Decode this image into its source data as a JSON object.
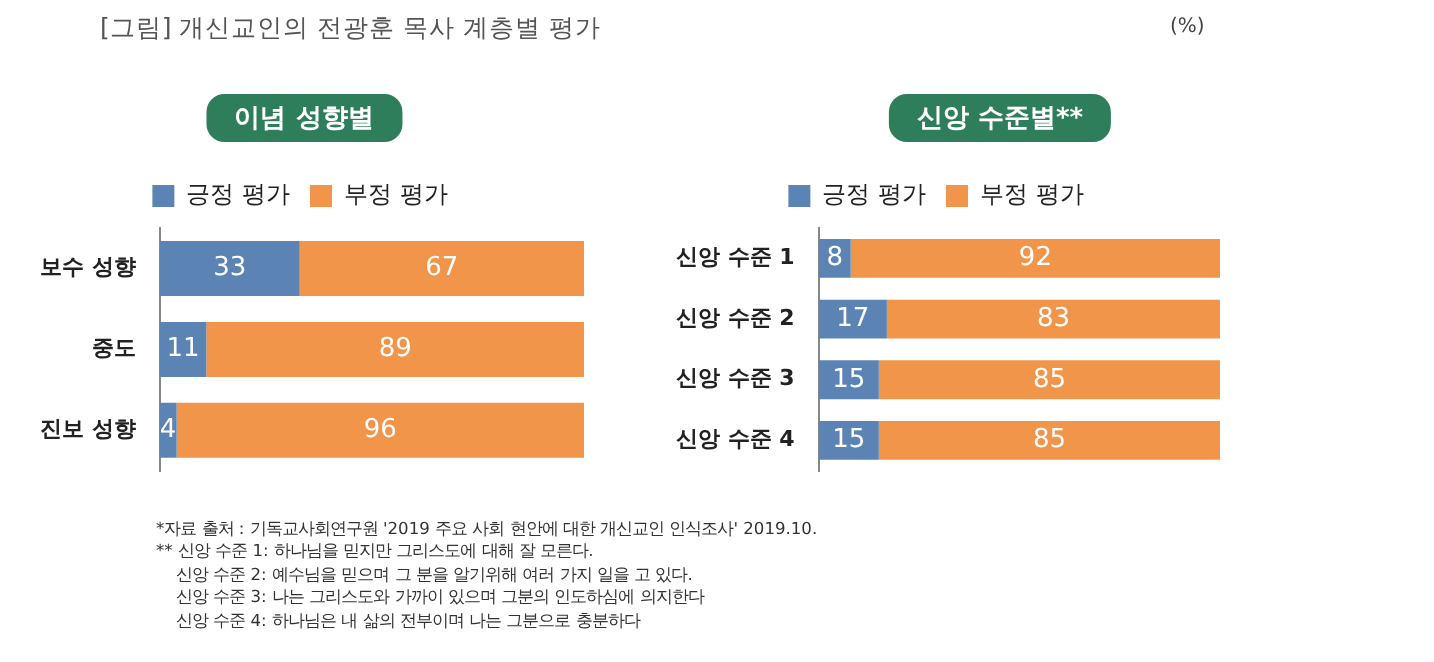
{
  "chart_data": [
    {
      "type": "bar",
      "orientation": "horizontal",
      "stacked": true,
      "title": "이념 성향별",
      "categories": [
        "보수 성향",
        "중도",
        "진보 성향"
      ],
      "series": [
        {
          "name": "긍정 평가",
          "color": "#5b84b5",
          "values": [
            33,
            11,
            4
          ]
        },
        {
          "name": "부정 평가",
          "color": "#f0954a",
          "values": [
            67,
            89,
            96
          ]
        }
      ],
      "xlim": [
        0,
        100
      ],
      "tick_labels": "y",
      "data_labels": true,
      "legend": "top",
      "annotations": [
        "[그림] 개신교인의 전광훈 목사 계층별 평가",
        "*자료 출처 : 기독교사회연구원 '2019 주요 사회 현안에 대한 개신교인 인식조사' 2019.10.",
        "** 신앙 수준 1: 하나님을 믿지만 그리스도에 대해 잘 모른다.",
        "신앙 수준 2: 예수님을 믿으며 그 분을 알기위해 여러 가지 일을 고 있다.",
        "신앙 수준 3: 나는 그리스도와 가까이 있으며 그분의 인도하심에 의지한다",
        "신앙 수준 4: 하나님은 내 삶의 전부이며 나는 그분으로 충분하다"
      ]
    },
    {
      "type": "bar",
      "orientation": "horizontal",
      "stacked": true,
      "title": "신앙 수준별**",
      "categories": [
        "신앙 수준 1",
        "신앙 수준 2",
        "신앙 수준 3",
        "신앙 수준 4"
      ],
      "series": [
        {
          "name": "긍정 평가",
          "color": "#5b84b5",
          "values": [
            8,
            17,
            15,
            15
          ]
        },
        {
          "name": "부정 평가",
          "color": "#f0954a",
          "values": [
            92,
            83,
            85,
            85
          ]
        }
      ],
      "xlim": [
        0,
        100
      ],
      "tick_labels": "y",
      "data_labels": true,
      "legend": "top",
      "annotations": [
        "(%)"
      ]
    }
  ]
}
